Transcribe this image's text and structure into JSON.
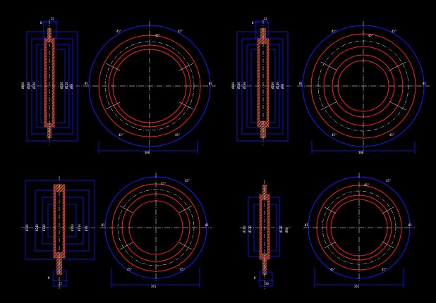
{
  "colors": {
    "background": "#000000",
    "dimension": "#1a1aff",
    "outline_red": "#ff2020",
    "centerline": "#ffffff",
    "hatch": "#c87050",
    "text": "#ffffff"
  },
  "views": [
    {
      "id": "top-left",
      "top_dims": [
        "B",
        "25"
      ],
      "left_dims": [
        "Ø400",
        "Ø340",
        "Ø260"
      ],
      "right_dims": [
        "Ø180",
        "Ø120",
        "Ø80"
      ],
      "plan_bottom": "300",
      "plan_left": "Ø1",
      "plan_right": "Ø1",
      "angles": [
        "45°",
        "45°",
        "45°",
        "45°",
        "45°"
      ]
    },
    {
      "id": "top-right",
      "top_dims": [
        "B",
        "22"
      ],
      "left_dims": [
        "Ø400",
        "Ø340",
        "Ø260"
      ],
      "right_dims": [
        "Ø200",
        "Ø140",
        "Ø90"
      ],
      "plan_bottom": "300",
      "plan_left": "Ø1",
      "plan_right": "Ø1",
      "angles": [
        "45°",
        "45°",
        "45°",
        "45°",
        "45°"
      ]
    },
    {
      "id": "bottom-left",
      "bottom_dims": [
        "B",
        "22"
      ],
      "left_dims": [
        "Ø300",
        "Ø240",
        "Ø180"
      ],
      "right_dims": [
        "Ø160",
        "Ø110",
        "Ø70"
      ],
      "plan_bottom": "261",
      "plan_left": "Ø1",
      "plan_right": "Ø1",
      "angles": [
        "45°",
        "45°",
        "45°",
        "45°"
      ]
    },
    {
      "id": "bottom-right",
      "bottom_dims": [
        "B",
        "20"
      ],
      "left_dims": [
        "Ø160",
        "Ø110"
      ],
      "right_dims": [
        "Ø120",
        "Ø80"
      ],
      "plan_bottom": "261",
      "plan_left": "Ø1",
      "plan_right": "Ø1",
      "angles": [
        "45°",
        "45°",
        "45°",
        "45°"
      ]
    }
  ]
}
